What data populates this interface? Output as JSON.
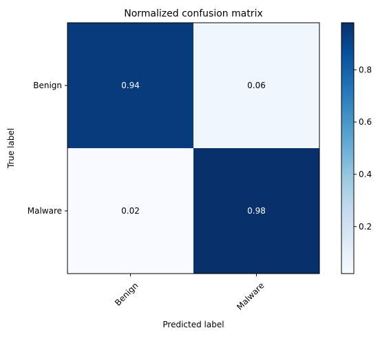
{
  "chart_data": {
    "type": "heatmap",
    "title": "Normalized confusion matrix",
    "xlabel": "Predicted label",
    "ylabel": "True label",
    "x_categories": [
      "Benign",
      "Malware"
    ],
    "y_categories": [
      "Benign",
      "Malware"
    ],
    "values": [
      [
        0.94,
        0.06
      ],
      [
        0.02,
        0.98
      ]
    ],
    "cell_labels": [
      [
        "0.94",
        "0.06"
      ],
      [
        "0.02",
        "0.98"
      ]
    ],
    "colormap": "Blues",
    "colorbar": {
      "range": [
        0.02,
        0.98
      ],
      "ticks": [
        0.2,
        0.4,
        0.6,
        0.8
      ],
      "tick_labels": [
        "0.2",
        "0.4",
        "0.6",
        "0.8"
      ]
    },
    "colors": {
      "low": "#f7fbff",
      "high": "#08306b",
      "text_light": "#ffffff",
      "text_dark": "#000000"
    }
  }
}
